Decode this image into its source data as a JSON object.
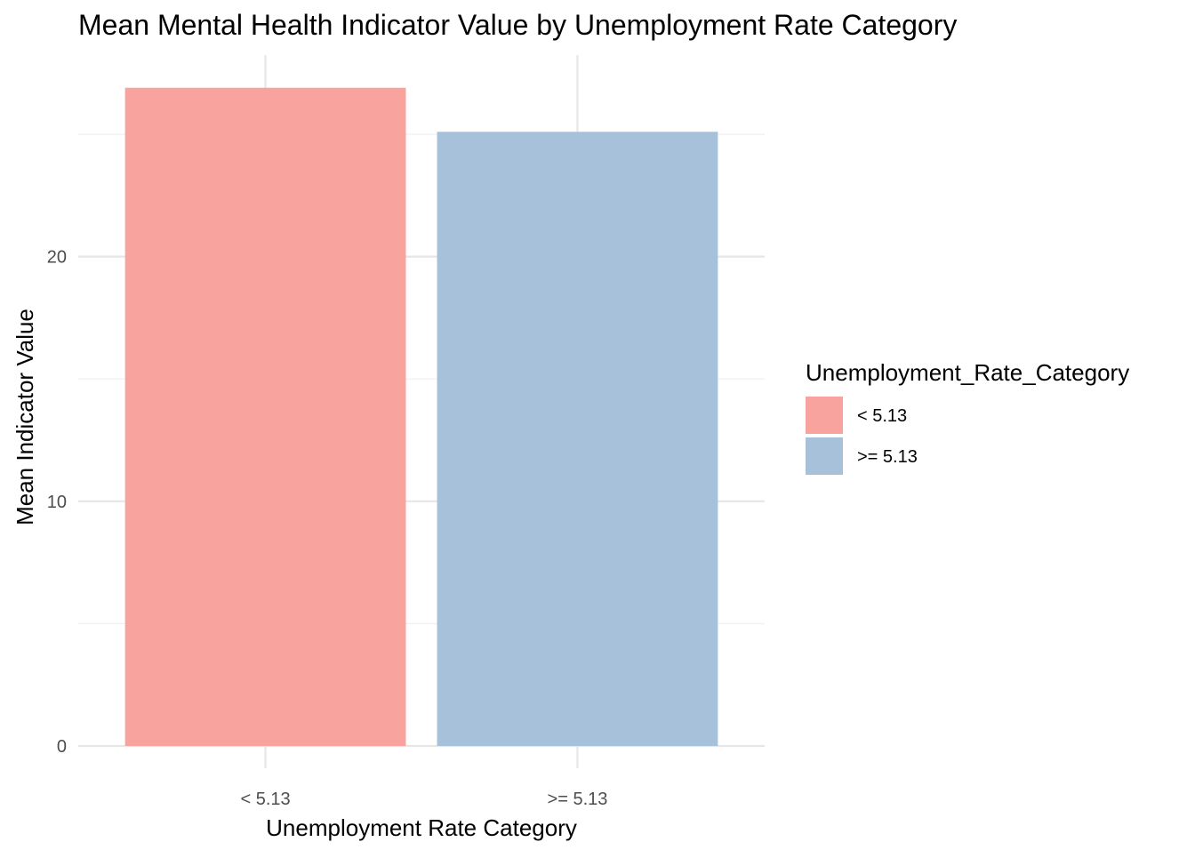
{
  "chart_data": {
    "type": "bar",
    "title": "Mean Mental Health Indicator Value by Unemployment Rate Category",
    "xlabel": "Unemployment Rate Category",
    "ylabel": "Mean Indicator Value",
    "categories": [
      "< 5.13",
      ">= 5.13"
    ],
    "values": [
      26.9,
      25.1
    ],
    "colors": [
      "#F8A39E",
      "#A7C1DB"
    ],
    "ylim": [
      0,
      28.2
    ],
    "y_ticks": [
      0,
      10,
      20
    ],
    "y_minor_ticks": [
      5,
      15,
      25
    ],
    "grid": true,
    "legend": {
      "title": "Unemployment_Rate_Category",
      "position": "right",
      "entries": [
        "< 5.13",
        ">= 5.13"
      ]
    }
  }
}
